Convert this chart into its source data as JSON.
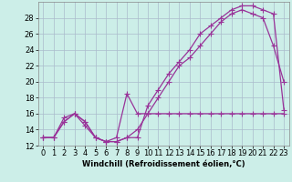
{
  "background_color": "#cceee8",
  "grid_color": "#aabbcc",
  "line_color": "#993399",
  "marker": "+",
  "markersize": 4,
  "linewidth": 0.9,
  "xlabel": "Windchill (Refroidissement éolien,°C)",
  "xlabel_fontsize": 6,
  "tick_fontsize": 6,
  "xlim": [
    -0.5,
    23.5
  ],
  "ylim": [
    12,
    30
  ],
  "yticks": [
    12,
    14,
    16,
    18,
    20,
    22,
    24,
    26,
    28
  ],
  "xticks": [
    0,
    1,
    2,
    3,
    4,
    5,
    6,
    7,
    8,
    9,
    10,
    11,
    12,
    13,
    14,
    15,
    16,
    17,
    18,
    19,
    20,
    21,
    22,
    23
  ],
  "series1_x": [
    0,
    1,
    2,
    3,
    4,
    5,
    6,
    7,
    8,
    9,
    10,
    11,
    12,
    13,
    14,
    15,
    16,
    17,
    18,
    19,
    20,
    21,
    22,
    23
  ],
  "series1_y": [
    13,
    13,
    15,
    16,
    14.5,
    13,
    12.5,
    13,
    18.5,
    16,
    16,
    16,
    16,
    16,
    16,
    16,
    16,
    16,
    16,
    16,
    16,
    16,
    16,
    16
  ],
  "series2_x": [
    0,
    1,
    2,
    3,
    4,
    5,
    6,
    7,
    8,
    9,
    10,
    11,
    12,
    13,
    14,
    15,
    16,
    17,
    18,
    19,
    20,
    21,
    22,
    23
  ],
  "series2_y": [
    13,
    13,
    15.5,
    16,
    15,
    13,
    12.5,
    12.5,
    13,
    13,
    17,
    19,
    21,
    22.5,
    24,
    26,
    27,
    28,
    29,
    29.5,
    29.5,
    29,
    28.5,
    16.5
  ],
  "series3_x": [
    0,
    1,
    2,
    3,
    4,
    5,
    6,
    7,
    8,
    9,
    10,
    11,
    12,
    13,
    14,
    15,
    16,
    17,
    18,
    19,
    20,
    21,
    22,
    23
  ],
  "series3_y": [
    13,
    13,
    15,
    16,
    15,
    13,
    12.5,
    12.5,
    13,
    14,
    16,
    18,
    20,
    22,
    23,
    24.5,
    26,
    27.5,
    28.5,
    29,
    28.5,
    28,
    24.5,
    20
  ]
}
